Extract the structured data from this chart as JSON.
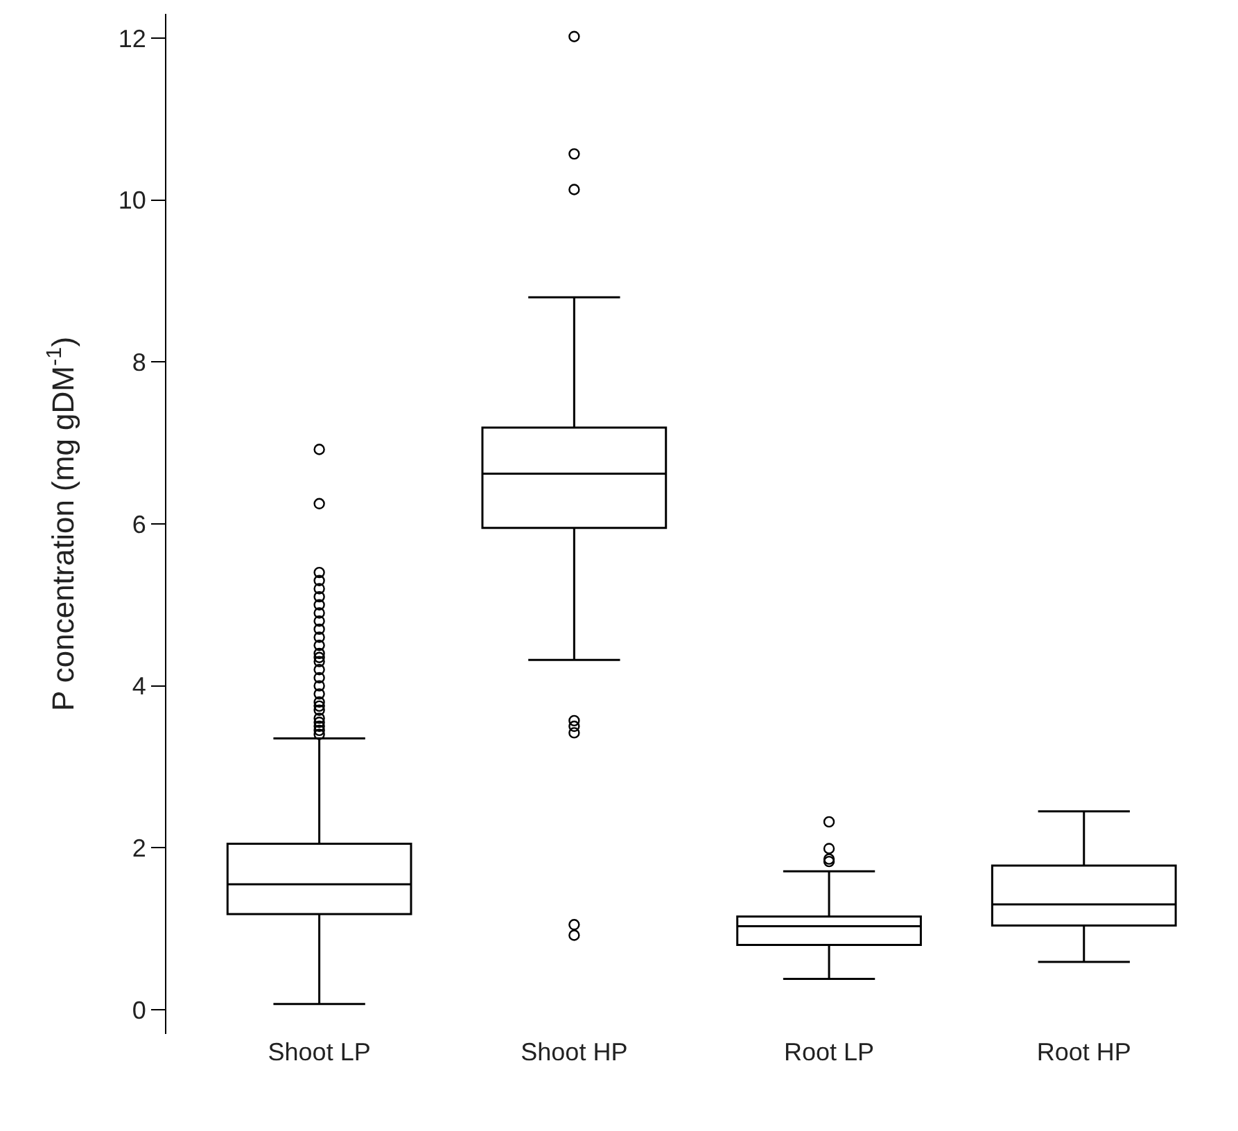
{
  "chart_data": {
    "type": "box",
    "ylabel": "P concentration (mg gDM$^{-1}$)",
    "categories": [
      "Shoot LP",
      "Shoot HP",
      "Root LP",
      "Root HP"
    ],
    "boxes": [
      {
        "low": 0.07,
        "q1": 1.18,
        "median": 1.55,
        "q3": 2.05,
        "high": 3.35,
        "outliers": [
          3.4,
          3.45,
          3.5,
          3.55,
          3.6,
          3.7,
          3.75,
          3.8,
          3.9,
          4.0,
          4.1,
          4.2,
          4.3,
          4.35,
          4.4,
          4.5,
          4.6,
          4.7,
          4.8,
          4.9,
          5.0,
          5.1,
          5.2,
          5.3,
          5.4,
          6.25,
          6.92
        ]
      },
      {
        "low": 4.32,
        "q1": 5.95,
        "median": 6.62,
        "q3": 7.19,
        "high": 8.8,
        "outliers": [
          0.92,
          1.05,
          3.42,
          3.5,
          3.57,
          10.13,
          10.57,
          12.02
        ]
      },
      {
        "low": 0.38,
        "q1": 0.8,
        "median": 1.03,
        "q3": 1.15,
        "high": 1.71,
        "outliers": [
          1.83,
          1.86,
          1.99,
          2.32
        ]
      },
      {
        "low": 0.59,
        "q1": 1.04,
        "median": 1.3,
        "q3": 1.78,
        "high": 2.45
      }
    ],
    "color": "#000000",
    "ylim": [
      -0.3,
      12.3
    ],
    "yticks": [
      0,
      2,
      4,
      6,
      8,
      10,
      12
    ],
    "marker": "circle"
  }
}
